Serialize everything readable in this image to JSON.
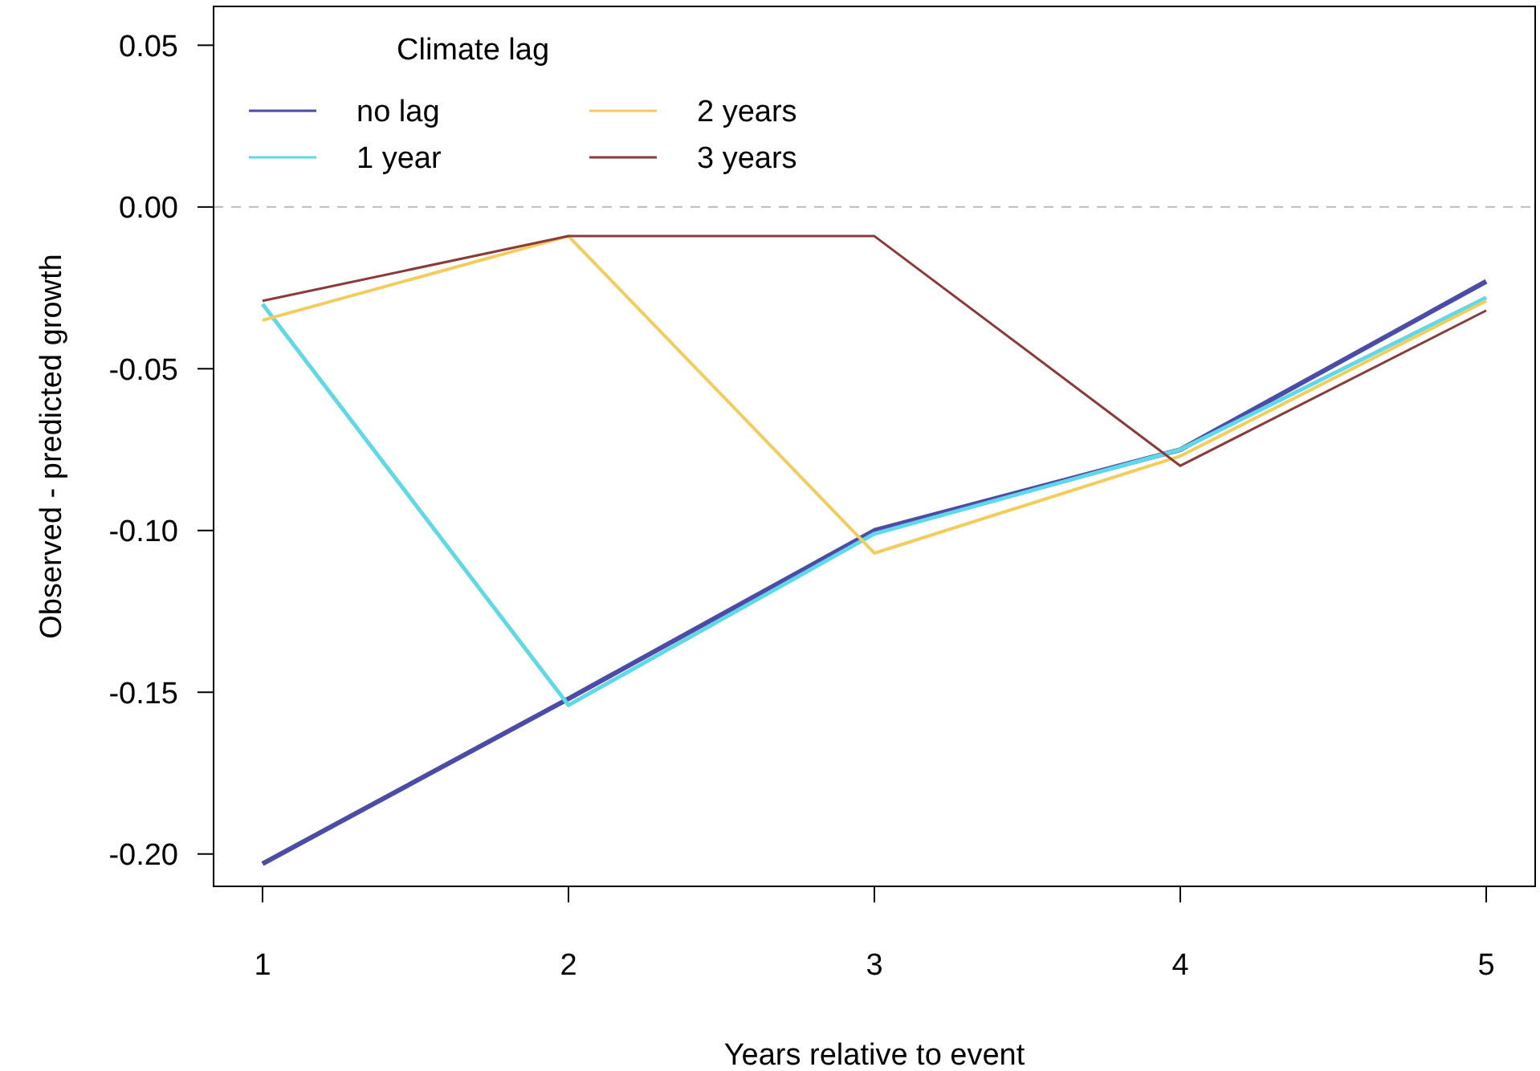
{
  "chart_data": {
    "type": "line",
    "xlabel": "Years relative to event",
    "ylabel": "Observed - predicted growth",
    "legend_title": "Climate lag",
    "legend": "top left",
    "grid": false,
    "marker": "none",
    "line_style": "solid",
    "x": [
      1,
      2,
      3,
      4,
      5
    ],
    "xlim": [
      0.84,
      5.16
    ],
    "xticks": [
      1,
      2,
      3,
      4,
      5
    ],
    "ylim": [
      -0.21,
      0.062
    ],
    "yticks": [
      {
        "value": -0.2,
        "label": "-0.20"
      },
      {
        "value": -0.15,
        "label": "-0.15"
      },
      {
        "value": -0.1,
        "label": "-0.10"
      },
      {
        "value": -0.05,
        "label": "-0.05"
      },
      {
        "value": 0,
        "label": "0.00"
      },
      {
        "value": 0.05,
        "label": "0.05"
      }
    ],
    "ref_lines": [
      {
        "axis": "y",
        "value": 0,
        "color": "#bbbbbb",
        "line_style": "dashed"
      }
    ],
    "series": [
      {
        "name": "no lag",
        "color": "#4b4ba8",
        "values": [
          -0.203,
          -0.152,
          -0.1,
          -0.075,
          -0.023
        ]
      },
      {
        "name": "1 year",
        "color": "#5fd8e8",
        "values": [
          -0.03,
          -0.154,
          -0.101,
          -0.075,
          -0.028
        ]
      },
      {
        "name": "2 years",
        "color": "#f2cd5c",
        "values": [
          -0.035,
          -0.009,
          -0.107,
          -0.077,
          -0.029
        ]
      },
      {
        "name": "3 years",
        "color": "#8b3a3a",
        "values": [
          -0.029,
          -0.009,
          -0.009,
          -0.08,
          -0.032
        ]
      }
    ]
  }
}
